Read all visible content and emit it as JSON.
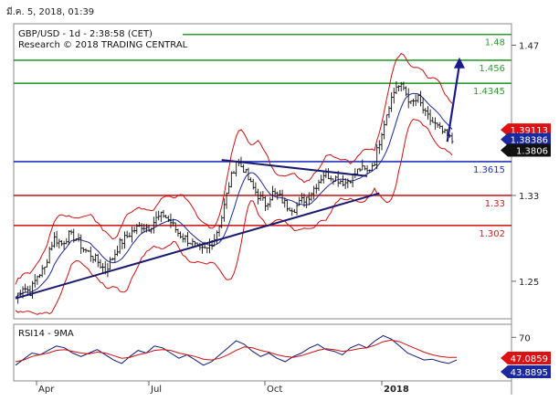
{
  "timestamp": "มี.ค. 5, 2018, 01:39",
  "header": {
    "symbol_line": "GBP/USD - 1d - 2:38:58 (CET)",
    "research_line": "Research © 2018 TRADING CENTRAL"
  },
  "chart_data": [
    {
      "type": "line",
      "name": "price-panel",
      "title": "GBP/USD - 1d - 2:38:58 (CET)",
      "x_ticks": [
        "Apr",
        "Jul",
        "Oct",
        "2018"
      ],
      "y_ticks": [
        1.25,
        1.33,
        1.47
      ],
      "ylim": [
        1.2,
        1.5
      ],
      "grid": false,
      "levels": [
        {
          "value": 1.48,
          "label": "1.48",
          "color": "#2e9e2e",
          "kind": "resistance"
        },
        {
          "value": 1.456,
          "label": "1.456",
          "color": "#2e9e2e",
          "kind": "resistance"
        },
        {
          "value": 1.4345,
          "label": "1.4345",
          "color": "#2e9e2e",
          "kind": "resistance"
        },
        {
          "value": 1.3615,
          "label": "1.3615",
          "color": "#2233bb",
          "kind": "pivot"
        },
        {
          "value": 1.33,
          "label": "1.33",
          "color": "#cc2222",
          "kind": "support"
        },
        {
          "value": 1.302,
          "label": "1.302",
          "color": "#cc2222",
          "kind": "support"
        }
      ],
      "price_tags": [
        {
          "label": "1.39113",
          "value": 1.3911,
          "color": "#dd1111",
          "text_color": "#ffffff"
        },
        {
          "label": "1.38386",
          "value": 1.3839,
          "color": "#1a2a9c",
          "text_color": "#ffffff"
        },
        {
          "label": "1.3806",
          "value": 1.3806,
          "color": "#111111",
          "text_color": "#ffffff"
        }
      ],
      "close_series": [
        [
          0,
          1.235
        ],
        [
          6,
          1.245
        ],
        [
          12,
          1.24
        ],
        [
          18,
          1.255
        ],
        [
          24,
          1.262
        ],
        [
          28,
          1.28
        ],
        [
          32,
          1.29
        ],
        [
          38,
          1.285
        ],
        [
          44,
          1.293
        ],
        [
          50,
          1.29
        ],
        [
          56,
          1.28
        ],
        [
          62,
          1.275
        ],
        [
          68,
          1.268
        ],
        [
          74,
          1.26
        ],
        [
          80,
          1.272
        ],
        [
          86,
          1.285
        ],
        [
          92,
          1.292
        ],
        [
          98,
          1.298
        ],
        [
          104,
          1.302
        ],
        [
          110,
          1.3
        ],
        [
          116,
          1.308
        ],
        [
          122,
          1.312
        ],
        [
          128,
          1.305
        ],
        [
          134,
          1.295
        ],
        [
          140,
          1.29
        ],
        [
          146,
          1.285
        ],
        [
          152,
          1.278
        ],
        [
          158,
          1.28
        ],
        [
          164,
          1.29
        ],
        [
          170,
          1.31
        ],
        [
          176,
          1.34
        ],
        [
          182,
          1.362
        ],
        [
          188,
          1.355
        ],
        [
          194,
          1.34
        ],
        [
          200,
          1.33
        ],
        [
          206,
          1.322
        ],
        [
          212,
          1.332
        ],
        [
          218,
          1.328
        ],
        [
          224,
          1.32
        ],
        [
          230,
          1.318
        ],
        [
          236,
          1.325
        ],
        [
          242,
          1.33
        ],
        [
          248,
          1.34
        ],
        [
          254,
          1.35
        ],
        [
          260,
          1.348
        ],
        [
          266,
          1.345
        ],
        [
          272,
          1.342
        ],
        [
          278,
          1.348
        ],
        [
          284,
          1.355
        ],
        [
          290,
          1.352
        ],
        [
          296,
          1.362
        ],
        [
          302,
          1.39
        ],
        [
          308,
          1.415
        ],
        [
          314,
          1.432
        ],
        [
          320,
          1.43
        ],
        [
          326,
          1.415
        ],
        [
          332,
          1.42
        ],
        [
          338,
          1.405
        ],
        [
          344,
          1.398
        ],
        [
          350,
          1.391
        ],
        [
          356,
          1.385
        ],
        [
          360,
          1.3806
        ]
      ],
      "trendlines": [
        {
          "from": [
            0,
            1.234
          ],
          "to": [
            300,
            1.332
          ],
          "color": "#1a1a6e"
        },
        {
          "from": [
            170,
            1.363
          ],
          "to": [
            290,
            1.348
          ],
          "color": "#1a1a6e"
        }
      ],
      "forecast_arrow": {
        "from": [
          356,
          1.38
        ],
        "to": [
          366,
          1.457
        ],
        "color": "#1a1a8e"
      }
    },
    {
      "type": "line",
      "name": "rsi-panel",
      "title": "RSI14 - 9MA",
      "y_ticks": [
        70
      ],
      "ylim": [
        20,
        80
      ],
      "tags": [
        {
          "label": "47.0859",
          "color": "#dd1111",
          "text_color": "#ffffff"
        },
        {
          "label": "43.8895",
          "color": "#1a2a9c",
          "text_color": "#ffffff"
        }
      ],
      "series": [
        {
          "color": "#0f1a7a",
          "values": [
            38,
            45,
            52,
            50,
            55,
            60,
            58,
            52,
            48,
            52,
            56,
            50,
            44,
            40,
            48,
            55,
            52,
            60,
            58,
            52,
            46,
            50,
            44,
            38,
            42,
            50,
            58,
            66,
            62,
            54,
            48,
            52,
            46,
            42,
            48,
            52,
            58,
            62,
            56,
            54,
            50,
            58,
            62,
            58,
            66,
            72,
            68,
            60,
            52,
            48,
            44,
            45,
            42,
            40,
            44
          ]
        },
        {
          "color": "#cc1111",
          "values": [
            42,
            44,
            48,
            50,
            52,
            55,
            56,
            54,
            52,
            51,
            53,
            52,
            49,
            46,
            47,
            50,
            52,
            55,
            56,
            55,
            52,
            50,
            48,
            45,
            44,
            46,
            50,
            55,
            59,
            58,
            55,
            53,
            50,
            48,
            47,
            49,
            52,
            55,
            57,
            56,
            54,
            55,
            57,
            58,
            61,
            65,
            67,
            65,
            61,
            57,
            53,
            50,
            48,
            47,
            47
          ]
        }
      ]
    }
  ]
}
